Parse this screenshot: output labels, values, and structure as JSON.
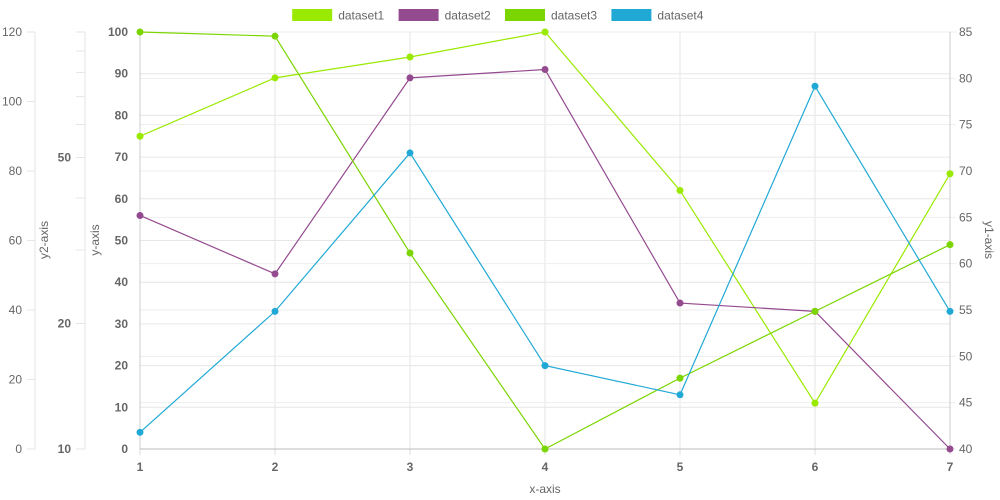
{
  "chart_data": {
    "type": "line",
    "x": [
      1,
      2,
      3,
      4,
      5,
      6,
      7
    ],
    "xlabel": "x-axis",
    "grid": true,
    "legend_position": "top",
    "series": [
      {
        "name": "dataset1",
        "axis": "y-axis",
        "color": "#99ea00",
        "values": [
          75,
          89,
          94,
          100,
          62,
          11,
          66
        ]
      },
      {
        "name": "dataset2",
        "axis": "y-axis",
        "color": "#944a8f",
        "values": [
          56,
          42,
          89,
          91,
          35,
          33,
          0
        ]
      },
      {
        "name": "dataset3",
        "axis": "y-axis",
        "color": "#7bd500",
        "values": [
          100,
          99,
          47,
          0,
          17,
          33,
          49
        ]
      },
      {
        "name": "dataset4",
        "axis": "y-axis",
        "color": "#21a9d6",
        "values": [
          4,
          33,
          71,
          20,
          13,
          87,
          33
        ]
      }
    ],
    "axes": {
      "y": {
        "label": "y-axis",
        "min": 0,
        "max": 100,
        "ticks": [
          0,
          10,
          20,
          30,
          40,
          50,
          60,
          70,
          80,
          90,
          100
        ],
        "bold": true
      },
      "y1": {
        "label": "y1-axis",
        "min": 40,
        "max": 85,
        "ticks": [
          40,
          45,
          50,
          55,
          60,
          65,
          70,
          75,
          80,
          85
        ]
      },
      "y2": {
        "label": "y2-axis",
        "min": 0,
        "max": 120,
        "ticks": [
          0,
          20,
          40,
          60,
          80,
          100,
          120
        ]
      },
      "y3": {
        "min": 10,
        "max": 100,
        "scale": "log",
        "ticks": [
          10,
          20,
          50
        ],
        "bold": true
      }
    }
  }
}
